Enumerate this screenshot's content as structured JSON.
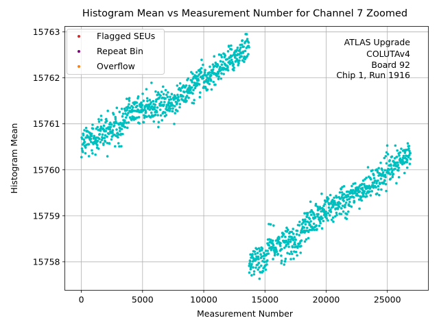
{
  "chart_data": {
    "type": "scatter",
    "title": "Histogram Mean vs Measurement Number for Channel 7 Zoomed",
    "xlabel": "Measurement Number",
    "ylabel": "Histogram Mean",
    "xlim": [
      -1350,
      28350
    ],
    "ylim": [
      15757.38,
      15763.12
    ],
    "xticks": [
      0,
      5000,
      10000,
      15000,
      20000,
      25000
    ],
    "yticks": [
      15758,
      15759,
      15760,
      15761,
      15762,
      15763
    ],
    "grid": true,
    "legend_position": "upper-left",
    "legend": [
      {
        "label": "Flagged SEUs",
        "color": "#d62728"
      },
      {
        "label": "Repeat Bin",
        "color": "#800080"
      },
      {
        "label": "Overflow",
        "color": "#ff7f0e"
      }
    ],
    "annotation": [
      "ATLAS Upgrade",
      "COLUTAv4",
      "Board 92",
      "Chip 1, Run 1916"
    ],
    "series": [
      {
        "name": "Histogram Mean",
        "color": "#00bfbf",
        "point_count": 1350,
        "segments": [
          {
            "x_start": 0,
            "x_end": 3500,
            "y_start": 15760.6,
            "y_end": 15761.0,
            "spread": 0.18
          },
          {
            "x_start": 3500,
            "x_end": 7600,
            "y_start": 15761.3,
            "y_end": 15761.45,
            "spread": 0.15
          },
          {
            "x_start": 7600,
            "x_end": 10000,
            "y_start": 15761.5,
            "y_end": 15762.0,
            "spread": 0.15
          },
          {
            "x_start": 10000,
            "x_end": 13700,
            "y_start": 15761.95,
            "y_end": 15762.7,
            "spread": 0.15
          },
          {
            "x_start": 13700,
            "x_end": 15200,
            "y_start": 15758.0,
            "y_end": 15758.05,
            "spread": 0.15
          },
          {
            "x_start": 15200,
            "x_end": 18000,
            "y_start": 15758.3,
            "y_end": 15758.5,
            "spread": 0.18
          },
          {
            "x_start": 18000,
            "x_end": 21500,
            "y_start": 15758.7,
            "y_end": 15759.4,
            "spread": 0.18
          },
          {
            "x_start": 21500,
            "x_end": 24000,
            "y_start": 15759.3,
            "y_end": 15759.75,
            "spread": 0.15
          },
          {
            "x_start": 24000,
            "x_end": 26900,
            "y_start": 15759.75,
            "y_end": 15760.35,
            "spread": 0.15
          }
        ]
      }
    ]
  }
}
